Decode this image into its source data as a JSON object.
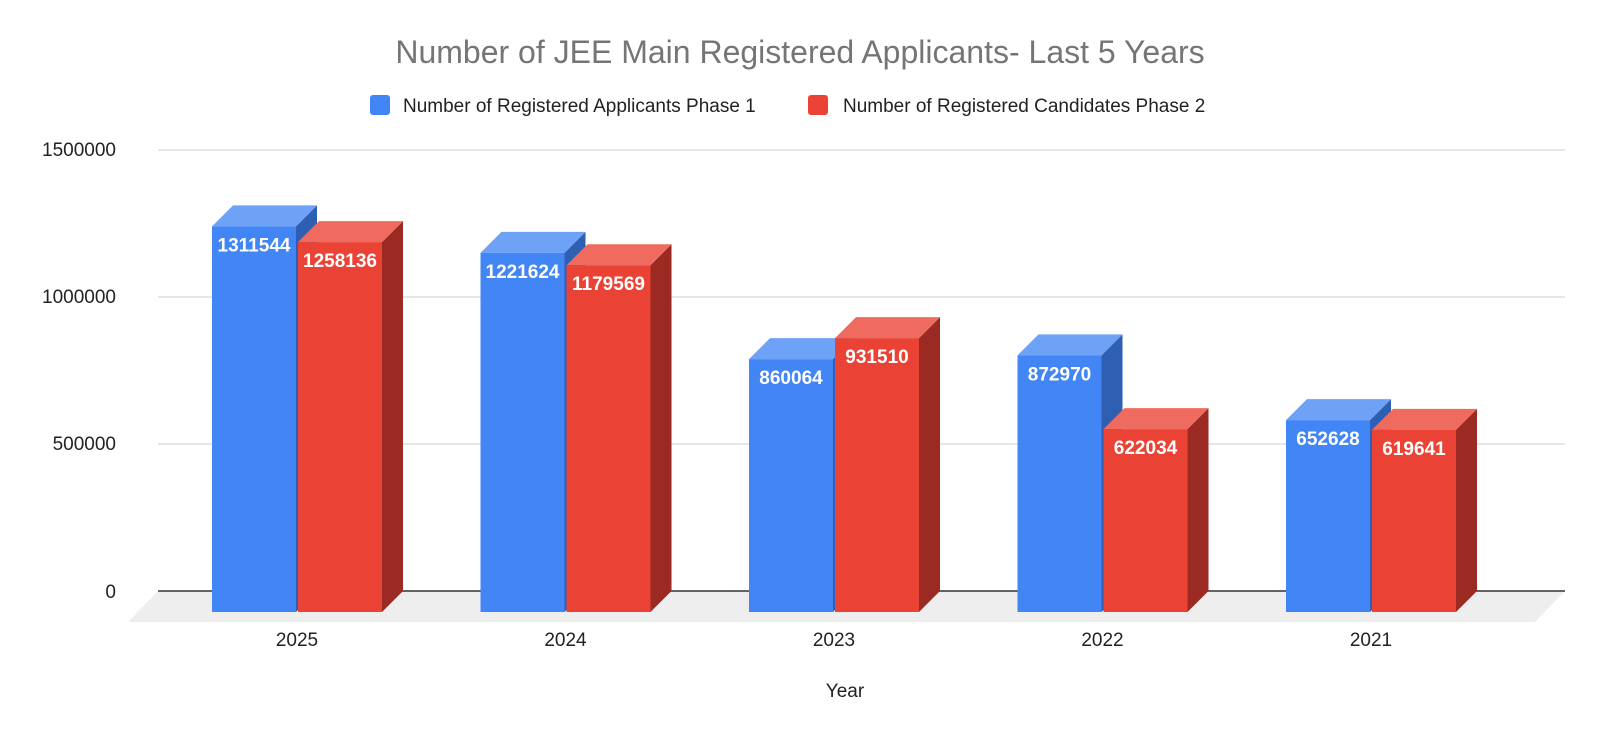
{
  "chart_data": {
    "type": "bar",
    "title": "Number of JEE Main Registered Applicants- Last 5 Years",
    "xlabel": "Year",
    "ylabel": "",
    "categories": [
      "2025",
      "2024",
      "2023",
      "2022",
      "2021"
    ],
    "series": [
      {
        "name": "Number of Registered Applicants Phase 1",
        "values": [
          1311544,
          1221624,
          860064,
          872970,
          652628
        ],
        "color": "#4285f4",
        "top_color": "#6ea2f7",
        "side_color": "#2f5fb3"
      },
      {
        "name": "Number of Registered Candidates Phase 2",
        "values": [
          1258136,
          1179569,
          931510,
          622034,
          619641
        ],
        "color": "#ea4335",
        "top_color": "#ef6b60",
        "side_color": "#9a2a22"
      }
    ],
    "ylim": [
      0,
      1500000
    ],
    "yticks": [
      "0",
      "500000",
      "1000000",
      "1500000"
    ],
    "data_labels": true,
    "grid": true,
    "legend_position": "top",
    "style": "3d-column"
  }
}
